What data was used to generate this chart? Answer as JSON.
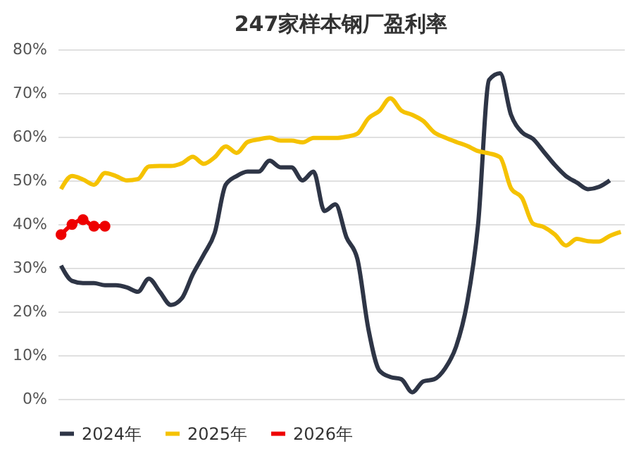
{
  "chart_data": {
    "type": "line",
    "title": "247家样本钢厂盈利率",
    "categories": [
      null,
      null,
      null,
      null,
      null,
      null,
      null,
      null,
      null,
      null,
      null,
      null,
      null,
      null,
      null,
      null,
      null,
      null,
      null,
      null,
      null,
      null,
      null,
      null,
      null,
      null,
      null,
      null,
      null,
      null,
      null,
      null,
      null,
      null,
      null,
      null,
      null,
      null,
      null,
      null,
      null,
      null,
      null,
      null,
      null,
      null,
      null,
      null,
      null,
      null,
      null,
      null
    ],
    "series": [
      {
        "name": "2024年",
        "color": "#2e3546",
        "marker": "none",
        "values": [
          30.5,
          27,
          26.5,
          26.5,
          26,
          26,
          25.5,
          24.5,
          27.5,
          24.5,
          21.5,
          23,
          28.5,
          33,
          38,
          49,
          51,
          52,
          52,
          54.5,
          53,
          53,
          50,
          52,
          43,
          44.5,
          37,
          32,
          16,
          6.5,
          5,
          4.5,
          1.5,
          4,
          4.5,
          7,
          12,
          22,
          40,
          73,
          74.5,
          65,
          61,
          59.5,
          56.5,
          53.5,
          51,
          49.5,
          48,
          48.5,
          50,
          null
        ]
      },
      {
        "name": "2025年",
        "color": "#f5c200",
        "marker": "none",
        "values": [
          48,
          51,
          50.2,
          49,
          51.7,
          51,
          50,
          50.3,
          53.2,
          53.3,
          53.3,
          53.9,
          55.4,
          53.8,
          55.3,
          57.8,
          56.3,
          58.8,
          59.4,
          59.8,
          59.1,
          59.1,
          58.7,
          59.7,
          59.7,
          59.7,
          60,
          60.7,
          64.2,
          65.9,
          68.8,
          66,
          65,
          63.6,
          61,
          59.8,
          58.8,
          57.9,
          56.7,
          56.2,
          55.3,
          48.2,
          46,
          40.1,
          39.3,
          37.6,
          35.1,
          36.6,
          36.1,
          36,
          37.3,
          38.2
        ]
      },
      {
        "name": "2026年",
        "color": "#ee0000",
        "marker": "circle",
        "values": [
          37.6,
          39.9,
          41,
          39.5,
          39.5,
          null,
          null,
          null,
          null,
          null,
          null,
          null,
          null,
          null,
          null,
          null,
          null,
          null,
          null,
          null,
          null,
          null,
          null,
          null,
          null,
          null,
          null,
          null,
          null,
          null,
          null,
          null,
          null,
          null,
          null,
          null,
          null,
          null,
          null,
          null,
          null,
          null,
          null,
          null,
          null,
          null,
          null,
          null,
          null,
          null,
          null,
          null
        ]
      }
    ],
    "ylim": [
      0,
      80
    ],
    "yticks": [
      {
        "value": 0,
        "label": "0%"
      },
      {
        "value": 10,
        "label": "10%"
      },
      {
        "value": 20,
        "label": "20%"
      },
      {
        "value": 30,
        "label": "30%"
      },
      {
        "value": 40,
        "label": "40%"
      },
      {
        "value": 50,
        "label": "50%"
      },
      {
        "value": 60,
        "label": "60%"
      },
      {
        "value": 70,
        "label": "70%"
      },
      {
        "value": 80,
        "label": "80%"
      }
    ],
    "grid": "y",
    "legend": "bottom",
    "tick_labels": "y"
  }
}
